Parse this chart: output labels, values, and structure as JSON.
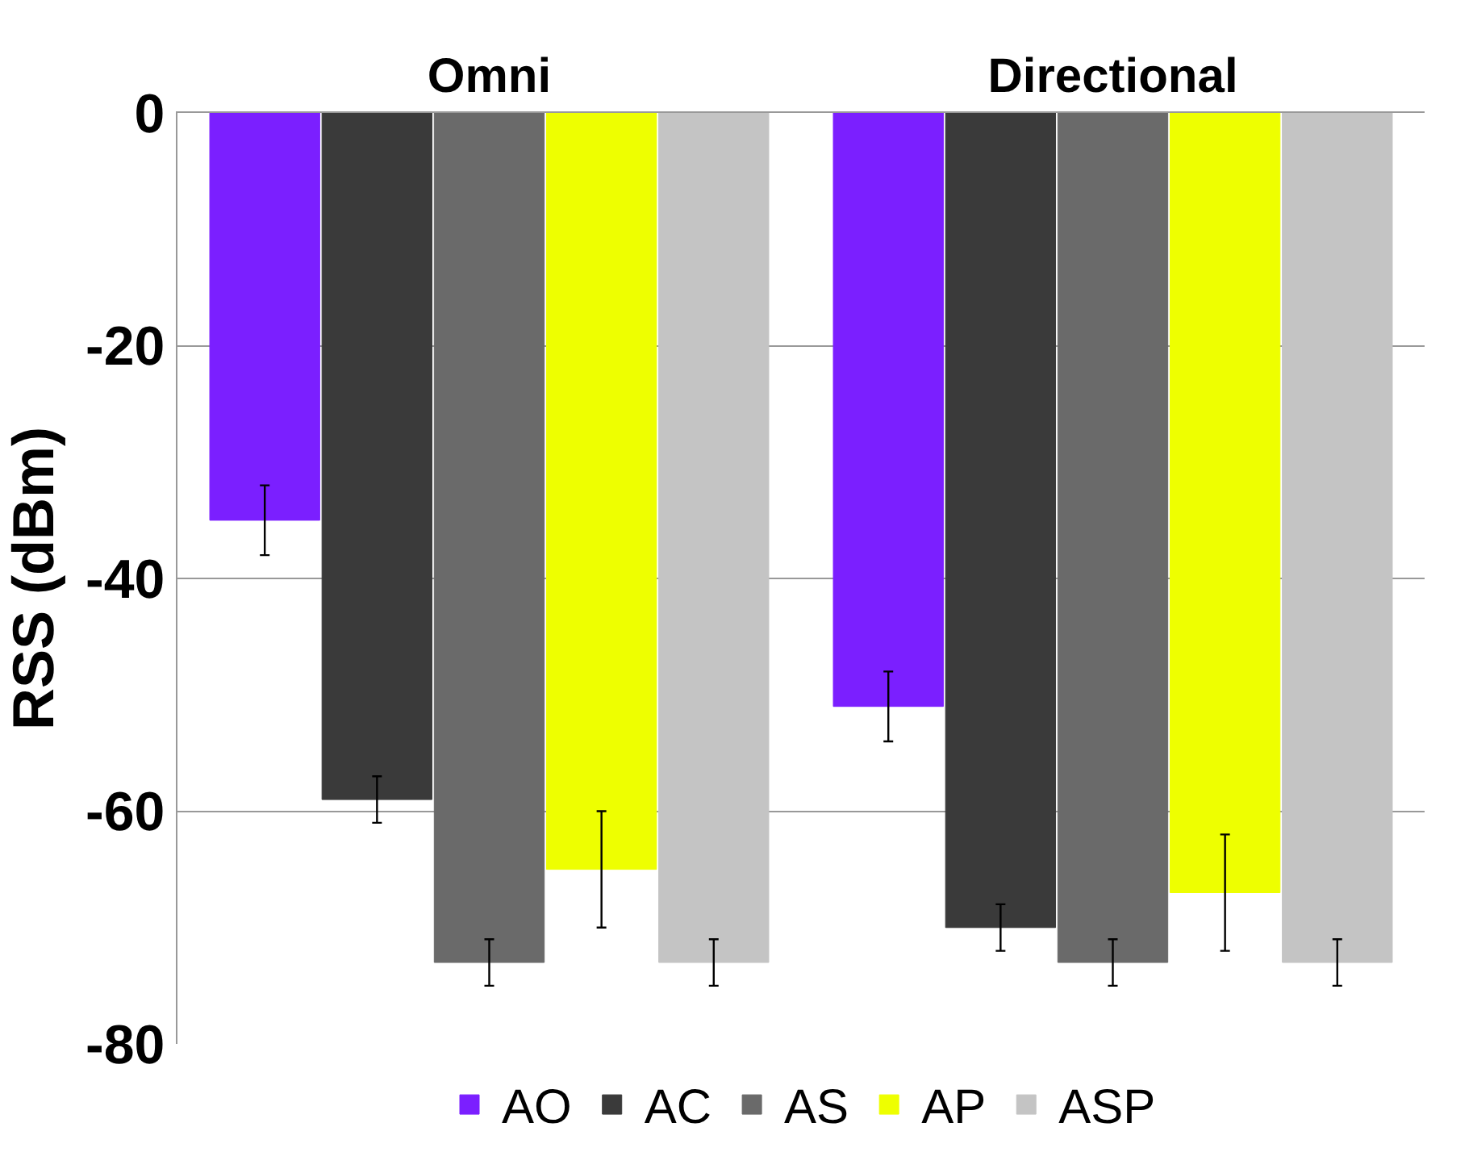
{
  "chart_data": {
    "type": "bar",
    "ylabel": "RSS (dBm)",
    "categories": [
      "Omni",
      "Directional"
    ],
    "series": [
      {
        "name": "AO",
        "color": "#7b1fff",
        "values": [
          -35,
          -51
        ],
        "errors": [
          3,
          3
        ]
      },
      {
        "name": "AC",
        "color": "#3a3a3a",
        "values": [
          -59,
          -70
        ],
        "errors": [
          2,
          2
        ]
      },
      {
        "name": "AS",
        "color": "#6a6a6a",
        "values": [
          -73,
          -73
        ],
        "errors": [
          2,
          2
        ]
      },
      {
        "name": "AP",
        "color": "#eeff00",
        "values": [
          -65,
          -67
        ],
        "errors": [
          5,
          5
        ]
      },
      {
        "name": "ASP",
        "color": "#c4c4c4",
        "values": [
          -73,
          -73
        ],
        "errors": [
          2,
          2
        ]
      }
    ],
    "ylim": [
      -80,
      0
    ],
    "yticks": [
      -80,
      -60,
      -40,
      -20,
      0
    ],
    "grid": "y",
    "legend": "bottom"
  }
}
